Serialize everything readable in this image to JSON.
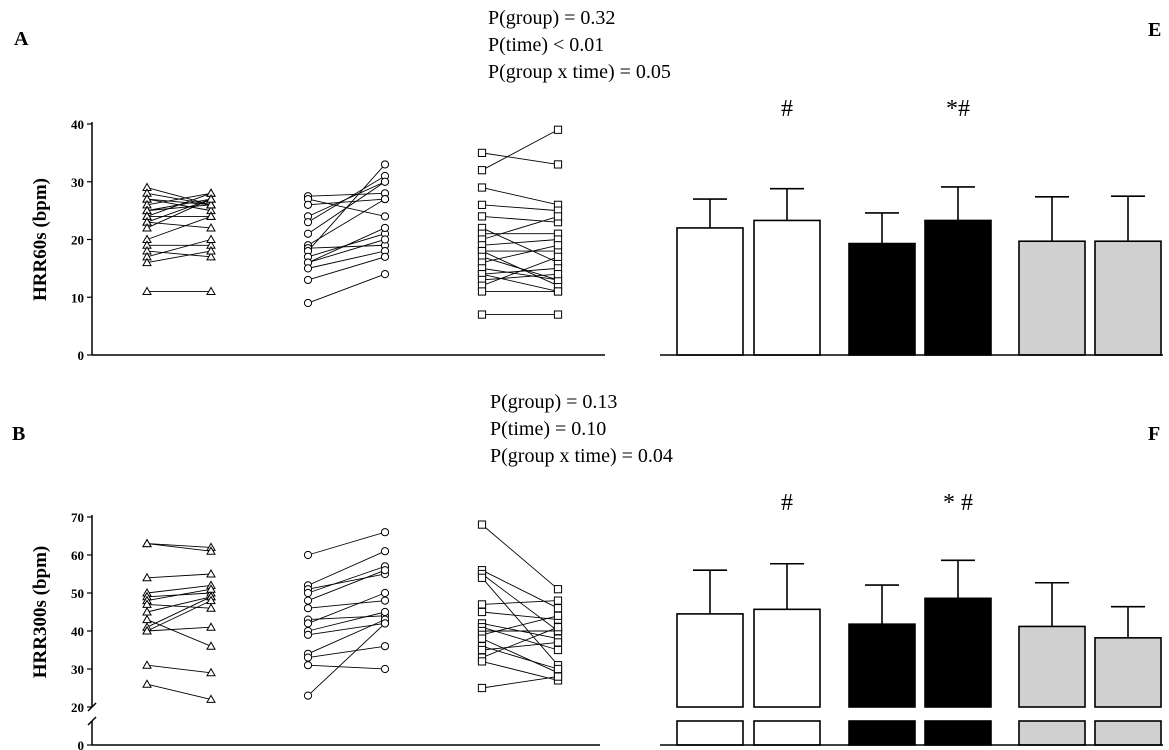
{
  "chart_data": [
    {
      "panel": "A",
      "type": "scatter",
      "ylabel": "HRR60s (bpm)",
      "ylim": [
        0,
        40
      ],
      "yticks": [
        0,
        10,
        20,
        30,
        40
      ],
      "stats": [
        "P(group) = 0.32",
        "P(time) < 0.01",
        "P(group x time) = 0.05"
      ],
      "series": [
        {
          "marker": "triangle",
          "pairs": [
            [
              29,
              26
            ],
            [
              28,
              26
            ],
            [
              27,
              26
            ],
            [
              27,
              25
            ],
            [
              26,
              28
            ],
            [
              25,
              27
            ],
            [
              25,
              26
            ],
            [
              24,
              28
            ],
            [
              24,
              24
            ],
            [
              23,
              27
            ],
            [
              23,
              22
            ],
            [
              22,
              27
            ],
            [
              20,
              24
            ],
            [
              19,
              19
            ],
            [
              18,
              17
            ],
            [
              17,
              20
            ],
            [
              16,
              18
            ],
            [
              11,
              11
            ]
          ]
        },
        {
          "marker": "circle",
          "pairs": [
            [
              27.5,
              28
            ],
            [
              27,
              24
            ],
            [
              26,
              27
            ],
            [
              24,
              30
            ],
            [
              23,
              31
            ],
            [
              21,
              30
            ],
            [
              19,
              27
            ],
            [
              18.5,
              19
            ],
            [
              18,
              33
            ],
            [
              17,
              21
            ],
            [
              16,
              20
            ],
            [
              16,
              22
            ],
            [
              15,
              18
            ],
            [
              13,
              17
            ],
            [
              9,
              14
            ]
          ]
        },
        {
          "marker": "square",
          "pairs": [
            [
              35,
              33
            ],
            [
              32,
              39
            ],
            [
              29,
              26
            ],
            [
              26,
              25
            ],
            [
              24,
              23
            ],
            [
              22,
              16
            ],
            [
              21,
              21
            ],
            [
              20,
              24
            ],
            [
              19,
              20
            ],
            [
              18,
              18
            ],
            [
              18,
              12
            ],
            [
              17,
              13
            ],
            [
              16,
              19
            ],
            [
              15,
              13
            ],
            [
              14,
              15
            ],
            [
              14,
              11
            ],
            [
              13,
              14
            ],
            [
              12,
              17
            ],
            [
              11,
              11
            ],
            [
              7,
              7
            ]
          ]
        }
      ]
    },
    {
      "panel": "E",
      "type": "bar",
      "values": [
        22,
        23.3,
        19.3,
        23.3,
        19.7,
        19.7
      ],
      "errors": [
        5,
        5.5,
        5.3,
        5.8,
        7.7,
        7.8
      ],
      "fills": [
        "#ffffff",
        "#ffffff",
        "#000000",
        "#000000",
        "#d0d0d0",
        "#d0d0d0"
      ],
      "ylim": [
        0,
        40
      ],
      "annotations": [
        {
          "bar": 1,
          "text": "#"
        },
        {
          "bar": 3,
          "text": "*#"
        }
      ]
    },
    {
      "panel": "B",
      "type": "scatter",
      "ylabel": "HRR300s (bpm)",
      "ylim": [
        20,
        70
      ],
      "yticks": [
        0,
        20,
        30,
        40,
        50,
        60,
        70
      ],
      "axis_break": true,
      "stats": [
        "P(group) = 0.13",
        "P(time) = 0.10",
        "P(group x time) = 0.04"
      ],
      "series": [
        {
          "marker": "triangle",
          "pairs": [
            [
              63,
              62
            ],
            [
              63,
              61
            ],
            [
              54,
              55
            ],
            [
              50,
              52
            ],
            [
              49,
              50
            ],
            [
              48,
              51
            ],
            [
              47,
              46
            ],
            [
              45,
              49
            ],
            [
              43,
              36
            ],
            [
              41,
              49
            ],
            [
              40,
              48
            ],
            [
              40,
              41
            ],
            [
              31,
              29
            ],
            [
              26,
              22
            ]
          ]
        },
        {
          "marker": "circle",
          "pairs": [
            [
              60,
              66
            ],
            [
              52,
              61
            ],
            [
              51,
              55
            ],
            [
              50,
              57
            ],
            [
              48,
              56
            ],
            [
              46,
              48
            ],
            [
              43,
              44
            ],
            [
              42,
              50
            ],
            [
              40,
              45
            ],
            [
              39,
              42
            ],
            [
              34,
              43
            ],
            [
              33,
              36
            ],
            [
              31,
              30
            ],
            [
              23,
              42
            ]
          ]
        },
        {
          "marker": "square",
          "pairs": [
            [
              68,
              51
            ],
            [
              56,
              46
            ],
            [
              55,
              40
            ],
            [
              54,
              31
            ],
            [
              47,
              48
            ],
            [
              45,
              43
            ],
            [
              42,
              38
            ],
            [
              41,
              35
            ],
            [
              40,
              40
            ],
            [
              39,
              44
            ],
            [
              38,
              29
            ],
            [
              36,
              30
            ],
            [
              35,
              37
            ],
            [
              33,
              41
            ],
            [
              32,
              27
            ],
            [
              25,
              28
            ]
          ]
        }
      ]
    },
    {
      "panel": "F",
      "type": "bar",
      "values": [
        44.5,
        45.7,
        41.8,
        48.6,
        41.2,
        38.2
      ],
      "errors": [
        11.5,
        12,
        10.3,
        10,
        11.5,
        8.2
      ],
      "fills": [
        "#ffffff",
        "#ffffff",
        "#000000",
        "#000000",
        "#d0d0d0",
        "#d0d0d0"
      ],
      "ylim": [
        20,
        70
      ],
      "axis_break": true,
      "annotations": [
        {
          "bar": 1,
          "text": "#"
        },
        {
          "bar": 3,
          "text": "* #"
        }
      ]
    }
  ]
}
